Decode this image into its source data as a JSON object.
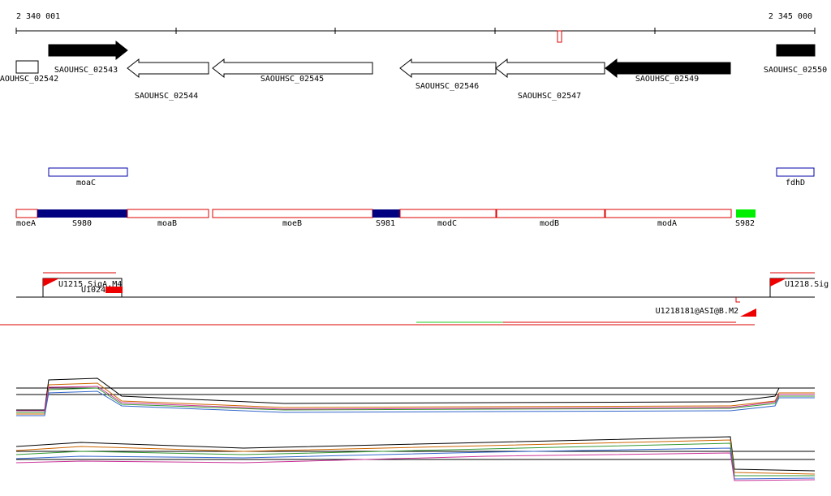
{
  "ruler": {
    "start": "2 340 001",
    "end": "2 345 000"
  },
  "genes": [
    {
      "label": "AOUHSC_02542"
    },
    {
      "label": "SAOUHSC_02543"
    },
    {
      "label": "SAOUHSC_02544"
    },
    {
      "label": "SAOUHSC_02545"
    },
    {
      "label": "SAOUHSC_02546"
    },
    {
      "label": "SAOUHSC_02547"
    },
    {
      "label": "SAOUHSC_02549"
    },
    {
      "label": "SAOUHSC_02550"
    }
  ],
  "operons": [
    {
      "label": "moaC"
    },
    {
      "label": "fdhD"
    }
  ],
  "segments": [
    {
      "label": "moeA"
    },
    {
      "label": "S980"
    },
    {
      "label": "moaB"
    },
    {
      "label": "moeB"
    },
    {
      "label": "S981"
    },
    {
      "label": "modC"
    },
    {
      "label": "modB"
    },
    {
      "label": "modA"
    },
    {
      "label": "S982"
    }
  ],
  "transcripts": [
    {
      "label": "U1215.SigA.M4"
    },
    {
      "label": "U1024"
    },
    {
      "label": "U1218.Sig"
    },
    {
      "label": "U1218181@ASI@B.M2"
    }
  ]
}
